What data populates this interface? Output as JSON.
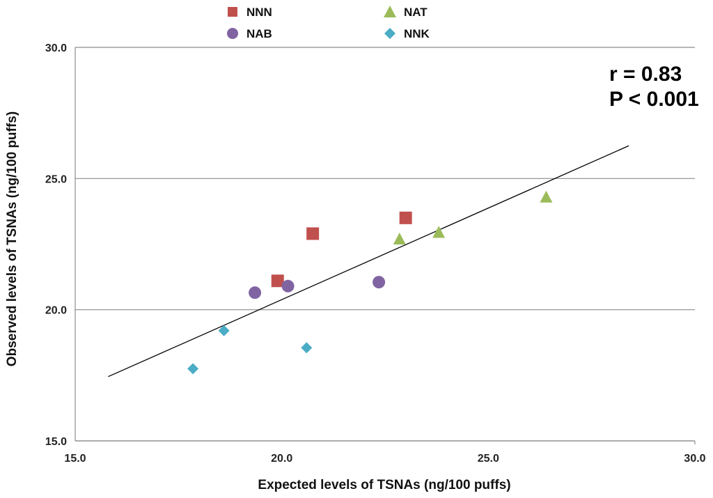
{
  "chart_data": {
    "type": "scatter",
    "title": "",
    "xlabel": "Expected levels of TSNAs (ng/100 puffs)",
    "ylabel": "Observed levels of TSNAs (ng/100 puffs)",
    "xlim": [
      15.0,
      30.0
    ],
    "ylim": [
      15.0,
      30.0
    ],
    "xticks": [
      "15.0",
      "20.0",
      "25.0",
      "30.0"
    ],
    "yticks": [
      "15.0",
      "20.0",
      "25.0",
      "30.0"
    ],
    "xtick_values": [
      15,
      20,
      25,
      30
    ],
    "ytick_values": [
      15,
      20,
      25,
      30
    ],
    "grid": "horizontal",
    "legend_position": "top",
    "series": [
      {
        "name": "NNN",
        "marker": "square",
        "color": "#C0504D",
        "points": [
          [
            19.9,
            21.1
          ],
          [
            20.75,
            22.9
          ],
          [
            23.0,
            23.5
          ]
        ]
      },
      {
        "name": "NAT",
        "marker": "triangle",
        "color": "#9BBB59",
        "points": [
          [
            22.85,
            22.7
          ],
          [
            23.8,
            22.95
          ],
          [
            26.4,
            24.3
          ]
        ]
      },
      {
        "name": "NAB",
        "marker": "circle",
        "color": "#8064A2",
        "points": [
          [
            19.35,
            20.65
          ],
          [
            20.15,
            20.9
          ],
          [
            22.35,
            21.05
          ]
        ]
      },
      {
        "name": "NNK",
        "marker": "diamond",
        "color": "#4BACC6",
        "points": [
          [
            17.85,
            17.75
          ],
          [
            18.6,
            19.2
          ],
          [
            20.6,
            18.55
          ]
        ]
      }
    ],
    "trendline": {
      "x": [
        15.8,
        28.4
      ],
      "y": [
        17.45,
        26.25
      ],
      "color": "#000000"
    },
    "annotations": [
      "r = 0.83",
      "P < 0.001"
    ]
  }
}
